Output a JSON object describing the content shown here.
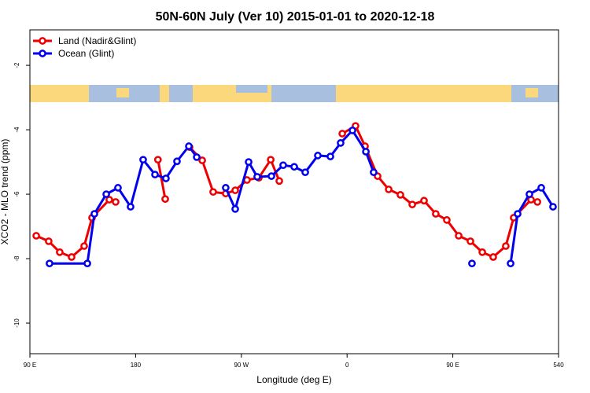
{
  "chart_data": {
    "type": "line",
    "title": "50N-60N July (Ver 10)   2015-01-01 to 2020-12-18",
    "x_label": "Longitude (deg E)",
    "y_label": "XCO2 - MLO trend (ppm)",
    "xlim": [
      90,
      540
    ],
    "ylim": [
      -10.95,
      -0.9
    ],
    "xticks": [
      {
        "value": 90,
        "label": "90 E"
      },
      180,
      {
        "value": 270,
        "label": "90 W"
      },
      {
        "value": 360,
        "label": "0"
      },
      {
        "value": 450,
        "label": "90 E"
      },
      540
    ],
    "yticks": [
      -2,
      -4,
      -6,
      -8,
      -10
    ],
    "legend_position": "top-left",
    "series": [
      {
        "name": "Land (Nadir&Glint)",
        "color": "#ee0000",
        "x": [
          95.4,
          106,
          115.4,
          125.5,
          136.2,
          142.9,
          157.6,
          163,
          null,
          199,
          205.2,
          null,
          225.9,
          236.7,
          246,
          256.7,
          264.8,
          274.8,
          284.9,
          295,
          302.3,
          null,
          355.9,
          367.2,
          375.3,
          386,
          395.4,
          405.4,
          415.5,
          425.5,
          435.5,
          444.9,
          455,
          465,
          475.1,
          484.4,
          495.1,
          501.8,
          516.6,
          522
        ],
        "values": [
          -7.29,
          -7.46,
          -7.8,
          -7.95,
          -7.61,
          -6.73,
          -6.17,
          -6.24,
          null,
          -4.93,
          -6.15,
          null,
          -4.54,
          -4.95,
          -5.93,
          -5.98,
          -5.88,
          -5.56,
          -5.49,
          -4.93,
          -5.59,
          null,
          -4.12,
          -3.88,
          -4.51,
          -5.44,
          -5.85,
          -6.02,
          -6.32,
          -6.2,
          -6.61,
          -6.8,
          -7.29,
          -7.46,
          -7.8,
          -7.95,
          -7.61,
          -6.73,
          -6.17,
          -6.24
        ]
      },
      {
        "name": "Ocean (Glint)",
        "color": "#0000ee",
        "x": [
          106.7,
          138.9,
          144.9,
          155,
          165,
          175.7,
          186.4,
          196.5,
          205.8,
          215.2,
          225.3,
          232,
          null,
          256.7,
          264.8,
          276.2,
          283.5,
          295.6,
          305.6,
          315,
          324.4,
          335.1,
          345.8,
          354.5,
          364.6,
          376,
          382.6,
          null,
          466.3,
          null,
          499.2,
          505.2,
          515.2,
          525.3,
          535.3
        ],
        "values": [
          -8.15,
          -8.15,
          -6.61,
          -6,
          -5.8,
          -6.39,
          -4.93,
          -5.39,
          -5.51,
          -4.98,
          -4.51,
          -4.85,
          null,
          -5.8,
          -6.46,
          -5,
          -5.46,
          -5.44,
          -5.1,
          -5.15,
          -5.32,
          -4.8,
          -4.83,
          -4.41,
          -4.02,
          -4.68,
          -5.32,
          null,
          -8.15,
          null,
          -8.15,
          -6.61,
          -6,
          -5.8,
          -6.39
        ]
      }
    ]
  }
}
